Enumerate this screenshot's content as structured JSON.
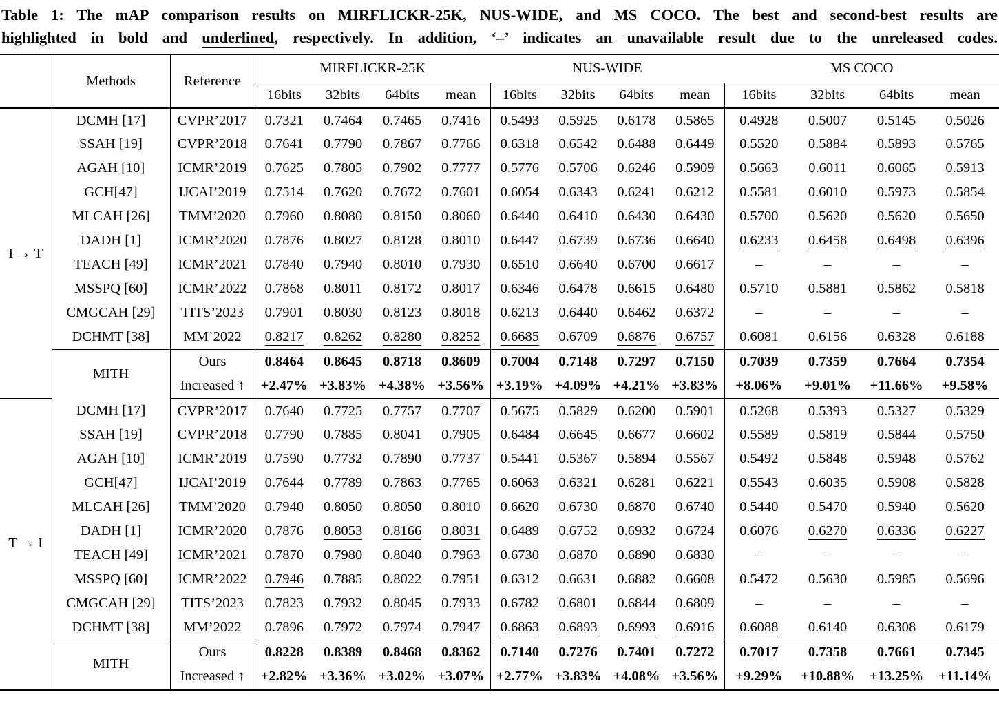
{
  "caption": {
    "line1": "Table 1: The mAP comparison results on MIRFLICKR-25K, NUS-WIDE, and MS COCO. The best and second-best results are",
    "line2_pre": "highlighted in bold and ",
    "line2_underlined": "underlined",
    "line2_post": ", respectively. In addition, ‘–’ indicates an unavailable result due to the unreleased codes."
  },
  "header": {
    "corner": "",
    "methods": "Methods",
    "reference": "Reference",
    "groups": [
      {
        "label": "MIRFLICKR-25K",
        "subs": [
          "16bits",
          "32bits",
          "64bits",
          "mean"
        ]
      },
      {
        "label": "NUS-WIDE",
        "subs": [
          "16bits",
          "32bits",
          "64bits",
          "mean"
        ]
      },
      {
        "label": "MS COCO",
        "subs": [
          "16bits",
          "32bits",
          "64bits",
          "mean"
        ]
      }
    ]
  },
  "sections": [
    {
      "label": "I → T",
      "rows": [
        {
          "method": "DCMH [17]",
          "reference": "CVPR’2017",
          "values": [
            "0.7321",
            "0.7464",
            "0.7465",
            "0.7416",
            "0.5493",
            "0.5925",
            "0.6178",
            "0.5865",
            "0.4928",
            "0.5007",
            "0.5145",
            "0.5026"
          ]
        },
        {
          "method": "SSAH [19]",
          "reference": "CVPR’2018",
          "values": [
            "0.7641",
            "0.7790",
            "0.7867",
            "0.7766",
            "0.6318",
            "0.6542",
            "0.6488",
            "0.6449",
            "0.5520",
            "0.5884",
            "0.5893",
            "0.5765"
          ]
        },
        {
          "method": "AGAH [10]",
          "reference": "ICMR’2019",
          "values": [
            "0.7625",
            "0.7805",
            "0.7902",
            "0.7777",
            "0.5776",
            "0.5706",
            "0.6246",
            "0.5909",
            "0.5663",
            "0.6011",
            "0.6065",
            "0.5913"
          ]
        },
        {
          "method": "GCH[47]",
          "reference": "IJCAI’2019",
          "values": [
            "0.7514",
            "0.7620",
            "0.7672",
            "0.7601",
            "0.6054",
            "0.6343",
            "0.6241",
            "0.6212",
            "0.5581",
            "0.6010",
            "0.5973",
            "0.5854"
          ]
        },
        {
          "method": "MLCAH [26]",
          "reference": "TMM’2020",
          "values": [
            "0.7960",
            "0.8080",
            "0.8150",
            "0.8060",
            "0.6440",
            "0.6410",
            "0.6430",
            "0.6430",
            "0.5700",
            "0.5620",
            "0.5620",
            "0.5650"
          ]
        },
        {
          "method": "DADH [1]",
          "reference": "ICMR’2020",
          "values": [
            "0.7876",
            "0.8027",
            "0.8128",
            "0.8010",
            "0.6447",
            {
              "v": "0.6739",
              "u": true
            },
            "0.6736",
            "0.6640",
            {
              "v": "0.6233",
              "u": true
            },
            {
              "v": "0.6458",
              "u": true
            },
            {
              "v": "0.6498",
              "u": true
            },
            {
              "v": "0.6396",
              "u": true
            }
          ]
        },
        {
          "method": "TEACH [49]",
          "reference": "ICMR’2021",
          "values": [
            "0.7840",
            "0.7940",
            "0.8010",
            "0.7930",
            "0.6510",
            "0.6640",
            "0.6700",
            "0.6617",
            "–",
            "–",
            "–",
            "–"
          ]
        },
        {
          "method": "MSSPQ [60]",
          "reference": "ICMR’2022",
          "values": [
            "0.7868",
            "0.8011",
            "0.8172",
            "0.8017",
            "0.6346",
            "0.6478",
            "0.6615",
            "0.6480",
            "0.5710",
            "0.5881",
            "0.5862",
            "0.5818"
          ]
        },
        {
          "method": "CMGCAH [29]",
          "reference": "TITS’2023",
          "values": [
            "0.7901",
            "0.8030",
            "0.8123",
            "0.8018",
            "0.6213",
            "0.6440",
            "0.6462",
            "0.6372",
            "–",
            "–",
            "–",
            "–"
          ]
        },
        {
          "method": "DCHMT [38]",
          "reference": "MM’2022",
          "values": [
            {
              "v": "0.8217",
              "u": true
            },
            {
              "v": "0.8262",
              "u": true
            },
            {
              "v": "0.8280",
              "u": true
            },
            {
              "v": "0.8252",
              "u": true
            },
            {
              "v": "0.6685",
              "u": true
            },
            "0.6709",
            {
              "v": "0.6876",
              "u": true
            },
            {
              "v": "0.6757",
              "u": true
            },
            "0.6081",
            "0.6156",
            "0.6328",
            "0.6188"
          ]
        }
      ],
      "mith": {
        "label": "MITH",
        "rows": [
          {
            "reference": "Ours",
            "values": [
              "0.8464",
              "0.8645",
              "0.8718",
              "0.8609",
              "0.7004",
              "0.7148",
              "0.7297",
              "0.7150",
              "0.7039",
              "0.7359",
              "0.7664",
              "0.7354"
            ]
          },
          {
            "reference": "Increased ↑",
            "values": [
              "+2.47%",
              "+3.83%",
              "+4.38%",
              "+3.56%",
              "+3.19%",
              "+4.09%",
              "+4.21%",
              "+3.83%",
              "+8.06%",
              "+9.01%",
              "+11.66%",
              "+9.58%"
            ]
          }
        ]
      }
    },
    {
      "label": "T → I",
      "rows": [
        {
          "method": "DCMH [17]",
          "reference": "CVPR’2017",
          "values": [
            "0.7640",
            "0.7725",
            "0.7757",
            "0.7707",
            "0.5675",
            "0.5829",
            "0.6200",
            "0.5901",
            "0.5268",
            "0.5393",
            "0.5327",
            "0.5329"
          ]
        },
        {
          "method": "SSAH [19]",
          "reference": "CVPR’2018",
          "values": [
            "0.7790",
            "0.7885",
            "0.8041",
            "0.7905",
            "0.6484",
            "0.6645",
            "0.6677",
            "0.6602",
            "0.5589",
            "0.5819",
            "0.5844",
            "0.5750"
          ]
        },
        {
          "method": "AGAH [10]",
          "reference": "ICMR’2019",
          "values": [
            "0.7590",
            "0.7732",
            "0.7890",
            "0.7737",
            "0.5441",
            "0.5367",
            "0.5894",
            "0.5567",
            "0.5492",
            "0.5848",
            "0.5948",
            "0.5762"
          ]
        },
        {
          "method": "GCH[47]",
          "reference": "IJCAI’2019",
          "values": [
            "0.7644",
            "0.7789",
            "0.7863",
            "0.7765",
            "0.6063",
            "0.6321",
            "0.6281",
            "0.6221",
            "0.5543",
            "0.6035",
            "0.5908",
            "0.5828"
          ]
        },
        {
          "method": "MLCAH [26]",
          "reference": "TMM’2020",
          "values": [
            "0.7940",
            "0.8050",
            "0.8050",
            "0.8010",
            "0.6620",
            "0.6730",
            "0.6870",
            "0.6740",
            "0.5440",
            "0.5470",
            "0.5940",
            "0.5620"
          ]
        },
        {
          "method": "DADH [1]",
          "reference": "ICMR’2020",
          "values": [
            "0.7876",
            {
              "v": "0.8053",
              "u": true
            },
            {
              "v": "0.8166",
              "u": true
            },
            {
              "v": "0.8031",
              "u": true
            },
            "0.6489",
            "0.6752",
            "0.6932",
            "0.6724",
            "0.6076",
            {
              "v": "0.6270",
              "u": true
            },
            {
              "v": "0.6336",
              "u": true
            },
            {
              "v": "0.6227",
              "u": true
            }
          ]
        },
        {
          "method": "TEACH [49]",
          "reference": "ICMR’2021",
          "values": [
            "0.7870",
            "0.7980",
            "0.8040",
            "0.7963",
            "0.6730",
            "0.6870",
            "0.6890",
            "0.6830",
            "–",
            "–",
            "–",
            "–"
          ]
        },
        {
          "method": "MSSPQ [60]",
          "reference": "ICMR’2022",
          "values": [
            {
              "v": "0.7946",
              "u": true
            },
            "0.7885",
            "0.8022",
            "0.7951",
            "0.6312",
            "0.6631",
            "0.6882",
            "0.6608",
            "0.5472",
            "0.5630",
            "0.5985",
            "0.5696"
          ]
        },
        {
          "method": "CMGCAH [29]",
          "reference": "TITS’2023",
          "values": [
            "0.7823",
            "0.7932",
            "0.8045",
            "0.7933",
            "0.6782",
            "0.6801",
            "0.6844",
            "0.6809",
            "–",
            "–",
            "–",
            "–"
          ]
        },
        {
          "method": "DCHMT [38]",
          "reference": "MM’2022",
          "values": [
            "0.7896",
            "0.7972",
            "0.7974",
            "0.7947",
            {
              "v": "0.6863",
              "u": true
            },
            {
              "v": "0.6893",
              "u": true
            },
            {
              "v": "0.6993",
              "u": true
            },
            {
              "v": "0.6916",
              "u": true
            },
            {
              "v": "0.6088",
              "u": true
            },
            "0.6140",
            "0.6308",
            "0.6179"
          ]
        }
      ],
      "mith": {
        "label": "MITH",
        "rows": [
          {
            "reference": "Ours",
            "values": [
              "0.8228",
              "0.8389",
              "0.8468",
              "0.8362",
              "0.7140",
              "0.7276",
              "0.7401",
              "0.7272",
              "0.7017",
              "0.7358",
              "0.7661",
              "0.7345"
            ]
          },
          {
            "reference": "Increased ↑",
            "values": [
              "+2.82%",
              "+3.36%",
              "+3.02%",
              "+3.07%",
              "+2.77%",
              "+3.83%",
              "+4.08%",
              "+3.56%",
              "+9.29%",
              "+10.88%",
              "+13.25%",
              "+11.14%"
            ]
          }
        ]
      }
    }
  ]
}
